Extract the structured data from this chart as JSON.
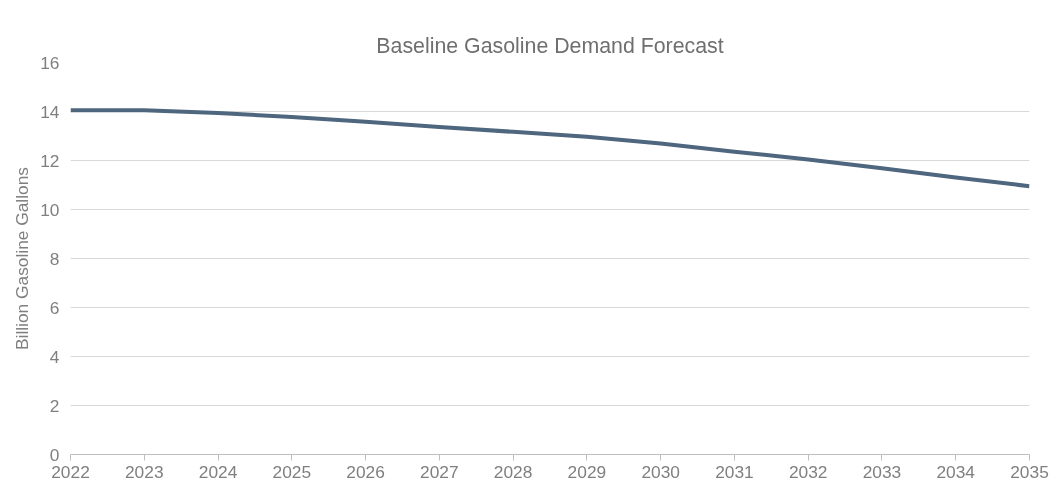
{
  "chart_data": {
    "type": "line",
    "title": "Baseline Gasoline Demand Forecast",
    "ylabel": "Billion Gasoline Gallons",
    "x": [
      2022,
      2023,
      2024,
      2025,
      2026,
      2027,
      2028,
      2029,
      2030,
      2031,
      2032,
      2033,
      2034,
      2035
    ],
    "series": [
      {
        "color": "#4e667e",
        "values": [
          14.05,
          14.05,
          13.94,
          13.78,
          13.58,
          13.37,
          13.17,
          12.97,
          12.69,
          12.36,
          12.04,
          11.68,
          11.31,
          10.95
        ]
      }
    ],
    "xlim": [
      2022,
      2035
    ],
    "xticks": [
      2022,
      2023,
      2024,
      2025,
      2026,
      2027,
      2028,
      2029,
      2030,
      2031,
      2032,
      2033,
      2034,
      2035
    ],
    "ylim": [
      0,
      16
    ],
    "yticks": [
      0,
      2,
      4,
      6,
      8,
      10,
      12,
      14,
      16
    ],
    "grid": "y",
    "marker": "none",
    "line_style": "solid"
  }
}
